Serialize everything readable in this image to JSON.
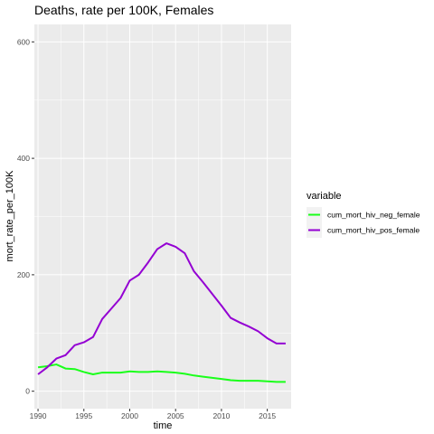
{
  "chart_data": {
    "type": "line",
    "title": "Deaths, rate per 100K, Females",
    "xlabel": "time",
    "ylabel": "mort_rate_per_100K",
    "xlim": [
      1989.6,
      2017.6
    ],
    "ylim": [
      -30,
      630
    ],
    "xticks": [
      1990,
      1995,
      2000,
      2005,
      2010,
      2015
    ],
    "yticks": [
      0,
      200,
      400,
      600
    ],
    "grid": true,
    "legend": {
      "title": "variable",
      "position": "right"
    },
    "x": [
      1990,
      1991,
      1992,
      1993,
      1994,
      1995,
      1996,
      1997,
      1998,
      1999,
      2000,
      2001,
      2002,
      2003,
      2004,
      2005,
      2006,
      2007,
      2008,
      2009,
      2010,
      2011,
      2012,
      2013,
      2014,
      2015,
      2016,
      2017
    ],
    "series": [
      {
        "name": "cum_mort_hiv_neg_female",
        "color": "#1aff1a",
        "values": [
          41,
          43,
          46,
          39,
          38,
          33,
          29,
          32,
          32,
          32,
          34,
          33,
          33,
          34,
          33,
          32,
          30,
          27,
          25,
          23,
          21,
          19,
          18,
          18,
          18,
          17,
          16,
          16
        ]
      },
      {
        "name": "cum_mort_hiv_pos_female",
        "color": "#9400d3",
        "values": [
          29,
          41,
          56,
          62,
          79,
          84,
          93,
          124,
          142,
          160,
          190,
          200,
          221,
          244,
          254,
          248,
          237,
          206,
          187,
          167,
          147,
          126,
          118,
          111,
          103,
          91,
          82,
          82
        ]
      }
    ]
  }
}
